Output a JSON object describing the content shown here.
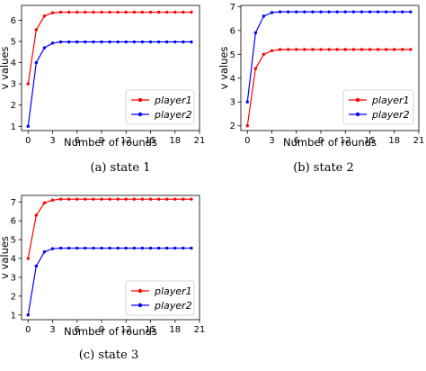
{
  "chart_data": [
    {
      "type": "line",
      "caption": "(a)  state 1",
      "xlabel": "Number of rounds",
      "ylabel": "v values",
      "xlim": [
        -0.8,
        21
      ],
      "ylim": [
        0.8,
        6.7
      ],
      "xticks": [
        0,
        3,
        6,
        9,
        12,
        15,
        18,
        21
      ],
      "yticks": [
        1,
        2,
        3,
        4,
        5,
        6
      ],
      "legend_position": "lower-right",
      "x": [
        0,
        1,
        2,
        3,
        4,
        5,
        6,
        7,
        8,
        9,
        10,
        11,
        12,
        13,
        14,
        15,
        16,
        17,
        18,
        19,
        20
      ],
      "series": [
        {
          "name": "player1",
          "color": "#ff0000",
          "marker": "circle",
          "values": [
            3.0,
            5.55,
            6.2,
            6.35,
            6.38,
            6.38,
            6.38,
            6.38,
            6.38,
            6.38,
            6.38,
            6.38,
            6.38,
            6.38,
            6.38,
            6.38,
            6.38,
            6.38,
            6.38,
            6.38,
            6.38
          ]
        },
        {
          "name": "player2",
          "color": "#0000ff",
          "marker": "circle",
          "values": [
            1.0,
            4.0,
            4.7,
            4.92,
            4.98,
            4.98,
            4.98,
            4.98,
            4.98,
            4.98,
            4.98,
            4.98,
            4.98,
            4.98,
            4.98,
            4.98,
            4.98,
            4.98,
            4.98,
            4.98,
            4.98
          ]
        }
      ]
    },
    {
      "type": "line",
      "caption": "(b)  state 2",
      "xlabel": "Number of rounds",
      "ylabel": "v values",
      "xlim": [
        -0.8,
        21
      ],
      "ylim": [
        1.8,
        7.05
      ],
      "xticks": [
        0,
        3,
        6,
        9,
        12,
        15,
        18,
        21
      ],
      "yticks": [
        2,
        3,
        4,
        5,
        6,
        7
      ],
      "legend_position": "lower-right",
      "x": [
        0,
        1,
        2,
        3,
        4,
        5,
        6,
        7,
        8,
        9,
        10,
        11,
        12,
        13,
        14,
        15,
        16,
        17,
        18,
        19,
        20
      ],
      "series": [
        {
          "name": "player1",
          "color": "#ff0000",
          "marker": "circle",
          "values": [
            2.0,
            4.4,
            5.0,
            5.15,
            5.2,
            5.2,
            5.2,
            5.2,
            5.2,
            5.2,
            5.2,
            5.2,
            5.2,
            5.2,
            5.2,
            5.2,
            5.2,
            5.2,
            5.2,
            5.2,
            5.2
          ]
        },
        {
          "name": "player2",
          "color": "#0000ff",
          "marker": "circle",
          "values": [
            3.0,
            5.9,
            6.6,
            6.75,
            6.78,
            6.78,
            6.78,
            6.78,
            6.78,
            6.78,
            6.78,
            6.78,
            6.78,
            6.78,
            6.78,
            6.78,
            6.78,
            6.78,
            6.78,
            6.78,
            6.78
          ]
        }
      ]
    },
    {
      "type": "line",
      "caption": "(c)  state 3",
      "xlabel": "Number of rounds",
      "ylabel": "v values",
      "xlim": [
        -0.8,
        21
      ],
      "ylim": [
        0.75,
        7.35
      ],
      "xticks": [
        0,
        3,
        6,
        9,
        12,
        15,
        18,
        21
      ],
      "yticks": [
        1,
        2,
        3,
        4,
        5,
        6,
        7
      ],
      "legend_position": "lower-right",
      "x": [
        0,
        1,
        2,
        3,
        4,
        5,
        6,
        7,
        8,
        9,
        10,
        11,
        12,
        13,
        14,
        15,
        16,
        17,
        18,
        19,
        20
      ],
      "series": [
        {
          "name": "player1",
          "color": "#ff0000",
          "marker": "circle",
          "values": [
            4.0,
            6.3,
            6.95,
            7.1,
            7.15,
            7.15,
            7.15,
            7.15,
            7.15,
            7.15,
            7.15,
            7.15,
            7.15,
            7.15,
            7.15,
            7.15,
            7.15,
            7.15,
            7.15,
            7.15,
            7.15
          ]
        },
        {
          "name": "player2",
          "color": "#0000ff",
          "marker": "circle",
          "values": [
            1.0,
            3.6,
            4.35,
            4.52,
            4.55,
            4.55,
            4.55,
            4.55,
            4.55,
            4.55,
            4.55,
            4.55,
            4.55,
            4.55,
            4.55,
            4.55,
            4.55,
            4.55,
            4.55,
            4.55,
            4.55
          ]
        }
      ]
    }
  ]
}
